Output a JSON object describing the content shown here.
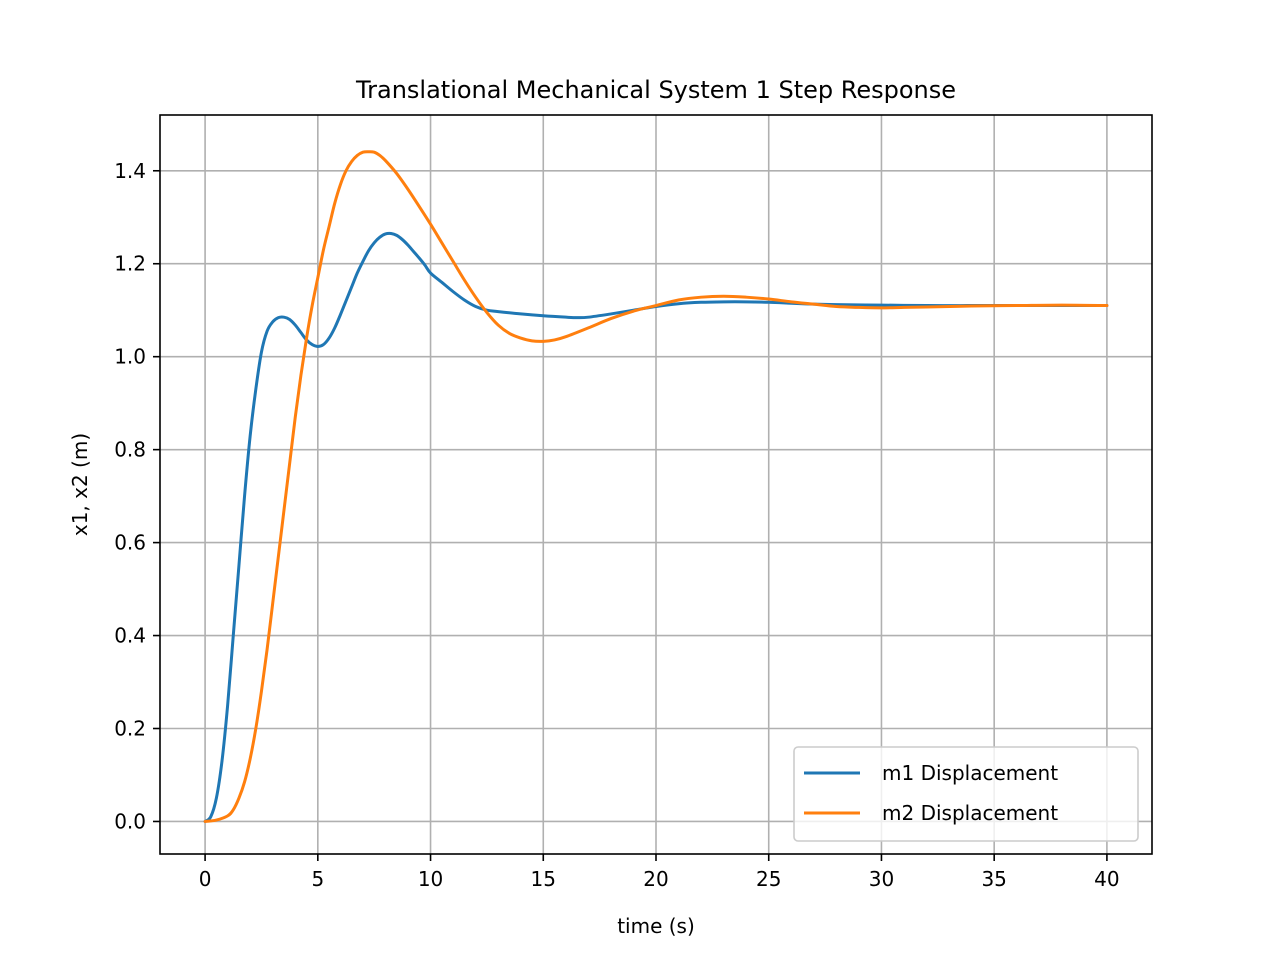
{
  "chart_data": {
    "type": "line",
    "title": "Translational Mechanical System 1 Step Response",
    "xlabel": "time (s)",
    "ylabel": "x1, x2 (m)",
    "xlim": [
      -2,
      42
    ],
    "ylim": [
      -0.07,
      1.52
    ],
    "xticks": [
      0,
      5,
      10,
      15,
      20,
      25,
      30,
      35,
      40
    ],
    "yticks": [
      0.0,
      0.2,
      0.4,
      0.6,
      0.8,
      1.0,
      1.2,
      1.4
    ],
    "xtick_labels": [
      "0",
      "5",
      "10",
      "15",
      "20",
      "25",
      "30",
      "35",
      "40"
    ],
    "ytick_labels": [
      "0.0",
      "0.2",
      "0.4",
      "0.6",
      "0.8",
      "1.0",
      "1.2",
      "1.4"
    ],
    "grid": true,
    "legend_position": "bottom-right",
    "series": [
      {
        "name": "m1 Displacement",
        "color": "#1f77b4",
        "x": [
          0,
          0.25,
          0.5,
          0.75,
          1,
          1.25,
          1.5,
          1.75,
          2,
          2.25,
          2.5,
          2.75,
          3,
          3.25,
          3.5,
          3.75,
          4,
          4.25,
          4.5,
          4.75,
          5,
          5.25,
          5.5,
          5.75,
          6,
          6.25,
          6.5,
          6.75,
          7,
          7.25,
          7.5,
          7.75,
          8,
          8.25,
          8.5,
          8.75,
          9,
          9.25,
          9.5,
          9.75,
          10,
          10.5,
          11,
          11.5,
          12,
          12.5,
          13,
          14,
          15,
          16,
          16.5,
          17,
          18,
          19,
          20,
          21,
          22,
          23,
          24,
          25,
          26,
          27,
          28,
          30,
          32,
          34,
          36,
          38,
          40
        ],
        "y": [
          0.0,
          0.01,
          0.05,
          0.13,
          0.25,
          0.4,
          0.55,
          0.7,
          0.83,
          0.93,
          1.01,
          1.055,
          1.075,
          1.084,
          1.085,
          1.08,
          1.068,
          1.052,
          1.036,
          1.026,
          1.022,
          1.026,
          1.04,
          1.062,
          1.09,
          1.12,
          1.15,
          1.18,
          1.205,
          1.228,
          1.245,
          1.257,
          1.264,
          1.265,
          1.261,
          1.252,
          1.24,
          1.226,
          1.212,
          1.197,
          1.18,
          1.16,
          1.14,
          1.122,
          1.108,
          1.1,
          1.097,
          1.092,
          1.088,
          1.085,
          1.084,
          1.085,
          1.092,
          1.1,
          1.108,
          1.114,
          1.117,
          1.118,
          1.118,
          1.117,
          1.115,
          1.113,
          1.112,
          1.111,
          1.11,
          1.11,
          1.11,
          1.11,
          1.11
        ]
      },
      {
        "name": "m2 Displacement",
        "color": "#ff7f0e",
        "x": [
          0,
          0.5,
          1,
          1.25,
          1.5,
          1.75,
          2,
          2.25,
          2.5,
          2.75,
          3,
          3.25,
          3.5,
          3.75,
          4,
          4.25,
          4.5,
          4.75,
          5,
          5.25,
          5.5,
          5.75,
          6,
          6.25,
          6.5,
          6.75,
          7,
          7.25,
          7.5,
          7.75,
          8,
          8.5,
          9,
          9.5,
          10,
          10.5,
          11,
          11.5,
          12,
          12.5,
          13,
          13.5,
          14,
          14.5,
          15,
          15.5,
          16,
          17,
          18,
          19,
          20,
          21,
          22,
          23,
          24,
          25,
          26,
          27,
          28,
          29,
          30,
          31,
          32,
          34,
          36,
          38,
          40
        ],
        "y": [
          0.0,
          0.003,
          0.012,
          0.025,
          0.05,
          0.085,
          0.135,
          0.2,
          0.28,
          0.37,
          0.47,
          0.57,
          0.67,
          0.77,
          0.87,
          0.96,
          1.04,
          1.11,
          1.17,
          1.23,
          1.28,
          1.33,
          1.37,
          1.4,
          1.42,
          1.433,
          1.44,
          1.441,
          1.44,
          1.433,
          1.422,
          1.394,
          1.36,
          1.323,
          1.285,
          1.245,
          1.205,
          1.165,
          1.128,
          1.095,
          1.068,
          1.05,
          1.04,
          1.034,
          1.033,
          1.036,
          1.043,
          1.062,
          1.082,
          1.098,
          1.11,
          1.122,
          1.128,
          1.13,
          1.128,
          1.124,
          1.118,
          1.113,
          1.108,
          1.106,
          1.105,
          1.106,
          1.107,
          1.109,
          1.11,
          1.111,
          1.11
        ]
      }
    ]
  }
}
